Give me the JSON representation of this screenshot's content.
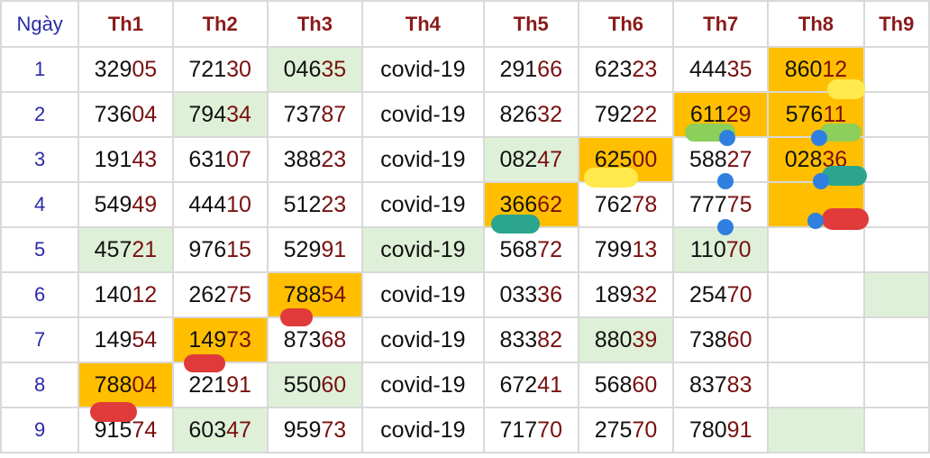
{
  "headers": [
    "Ngày",
    "Th1",
    "Th2",
    "Th3",
    "Th4",
    "Th5",
    "Th6",
    "Th7",
    "Th8",
    "Th9"
  ],
  "rows": [
    {
      "day": "1",
      "cells": [
        "32905",
        "72130",
        "04635",
        "covid-19",
        "29166",
        "62323",
        "44435",
        "86012",
        ""
      ]
    },
    {
      "day": "2",
      "cells": [
        "73604",
        "79434",
        "73787",
        "covid-19",
        "82632",
        "79222",
        "61129",
        "57611",
        ""
      ]
    },
    {
      "day": "3",
      "cells": [
        "19143",
        "63107",
        "38823",
        "covid-19",
        "08247",
        "62500",
        "58827",
        "02836",
        ""
      ]
    },
    {
      "day": "4",
      "cells": [
        "54949",
        "44410",
        "51223",
        "covid-19",
        "36662",
        "76278",
        "77775",
        "",
        ""
      ]
    },
    {
      "day": "5",
      "cells": [
        "45721",
        "97615",
        "52991",
        "covid-19",
        "56872",
        "79913",
        "11070",
        "",
        ""
      ]
    },
    {
      "day": "6",
      "cells": [
        "14012",
        "26275",
        "78854",
        "covid-19",
        "03336",
        "18932",
        "25470",
        "",
        ""
      ]
    },
    {
      "day": "7",
      "cells": [
        "14954",
        "14973",
        "87368",
        "covid-19",
        "83382",
        "88039",
        "73860",
        "",
        ""
      ]
    },
    {
      "day": "8",
      "cells": [
        "78804",
        "22191",
        "55060",
        "covid-19",
        "67241",
        "56860",
        "83783",
        "",
        ""
      ]
    },
    {
      "day": "9",
      "cells": [
        "91574",
        "60347",
        "95973",
        "covid-19",
        "71770",
        "27570",
        "78091",
        "",
        ""
      ]
    }
  ],
  "colors": {
    "green": "#dff0d8",
    "orange": "#ffbf00",
    "header_red": "#8b1a1a",
    "day_blue": "#2a2aa8",
    "last_two_digits": "#7a1010"
  },
  "highlights": {
    "green": [
      [
        0,
        2
      ],
      [
        1,
        1
      ],
      [
        2,
        4
      ],
      [
        4,
        0
      ],
      [
        4,
        3
      ],
      [
        4,
        6
      ],
      [
        5,
        8
      ],
      [
        6,
        5
      ],
      [
        7,
        2
      ],
      [
        8,
        1
      ],
      [
        8,
        7
      ]
    ],
    "orange": [
      [
        0,
        7
      ],
      [
        1,
        6
      ],
      [
        1,
        7
      ],
      [
        2,
        5
      ],
      [
        2,
        7
      ],
      [
        3,
        4
      ],
      [
        3,
        7
      ],
      [
        5,
        2
      ],
      [
        6,
        1
      ],
      [
        7,
        0
      ]
    ]
  }
}
